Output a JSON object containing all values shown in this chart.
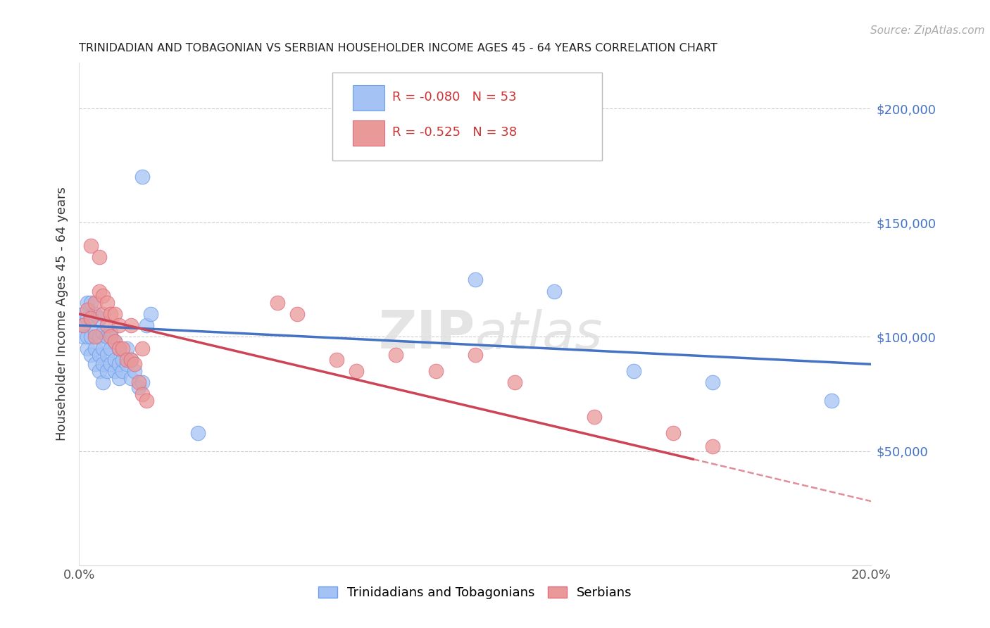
{
  "title": "TRINIDADIAN AND TOBAGONIAN VS SERBIAN HOUSEHOLDER INCOME AGES 45 - 64 YEARS CORRELATION CHART",
  "source": "Source: ZipAtlas.com",
  "ylabel": "Householder Income Ages 45 - 64 years",
  "xlim": [
    0.0,
    0.2
  ],
  "ylim": [
    0,
    220000
  ],
  "yticks": [
    0,
    50000,
    100000,
    150000,
    200000
  ],
  "xtick_labels": [
    "0.0%",
    "",
    "",
    "",
    "",
    "",
    "",
    "",
    "",
    "",
    "20.0%"
  ],
  "watermark_part1": "ZIP",
  "watermark_part2": "atlas",
  "series1_color": "#a4c2f4",
  "series2_color": "#ea9999",
  "series1_edge": "#6d9eeb",
  "series2_edge": "#e06c7f",
  "trendline1_color": "#4472c4",
  "trendline2_color": "#cc4455",
  "background_color": "#ffffff",
  "grid_color": "#cccccc",
  "ytick_color": "#4472c4",
  "R1": -0.08,
  "N1": 53,
  "R2": -0.525,
  "N2": 38,
  "trinidadians_x": [
    0.001,
    0.001,
    0.001,
    0.002,
    0.002,
    0.002,
    0.002,
    0.003,
    0.003,
    0.003,
    0.003,
    0.004,
    0.004,
    0.004,
    0.004,
    0.005,
    0.005,
    0.005,
    0.005,
    0.006,
    0.006,
    0.006,
    0.006,
    0.007,
    0.007,
    0.007,
    0.008,
    0.008,
    0.008,
    0.009,
    0.009,
    0.009,
    0.01,
    0.01,
    0.01,
    0.011,
    0.011,
    0.012,
    0.012,
    0.013,
    0.013,
    0.014,
    0.015,
    0.016,
    0.016,
    0.017,
    0.018,
    0.03,
    0.1,
    0.12,
    0.14,
    0.16,
    0.19
  ],
  "trinidadians_y": [
    100000,
    105000,
    110000,
    95000,
    100000,
    108000,
    115000,
    92000,
    100000,
    108000,
    115000,
    88000,
    95000,
    102000,
    110000,
    85000,
    92000,
    100000,
    108000,
    80000,
    88000,
    95000,
    102000,
    85000,
    92000,
    100000,
    88000,
    95000,
    102000,
    85000,
    90000,
    98000,
    82000,
    88000,
    95000,
    85000,
    90000,
    88000,
    95000,
    82000,
    90000,
    85000,
    78000,
    80000,
    170000,
    105000,
    110000,
    58000,
    125000,
    120000,
    85000,
    80000,
    72000
  ],
  "serbians_x": [
    0.001,
    0.002,
    0.003,
    0.003,
    0.004,
    0.004,
    0.005,
    0.005,
    0.006,
    0.006,
    0.007,
    0.007,
    0.008,
    0.008,
    0.009,
    0.009,
    0.01,
    0.01,
    0.011,
    0.012,
    0.013,
    0.013,
    0.014,
    0.015,
    0.016,
    0.016,
    0.017,
    0.05,
    0.055,
    0.065,
    0.07,
    0.08,
    0.09,
    0.1,
    0.11,
    0.13,
    0.15,
    0.16
  ],
  "serbians_y": [
    105000,
    112000,
    108000,
    140000,
    100000,
    115000,
    120000,
    135000,
    110000,
    118000,
    105000,
    115000,
    100000,
    110000,
    98000,
    110000,
    95000,
    105000,
    95000,
    90000,
    90000,
    105000,
    88000,
    80000,
    75000,
    95000,
    72000,
    115000,
    110000,
    90000,
    85000,
    92000,
    85000,
    92000,
    80000,
    65000,
    58000,
    52000
  ],
  "trend1_x0": 0.0,
  "trend1_y0": 105000,
  "trend1_x1": 0.2,
  "trend1_y1": 88000,
  "trend2_x0": 0.0,
  "trend2_y0": 110000,
  "trend2_x1": 0.2,
  "trend2_y1": 28000,
  "trend2_solid_end": 0.155
}
